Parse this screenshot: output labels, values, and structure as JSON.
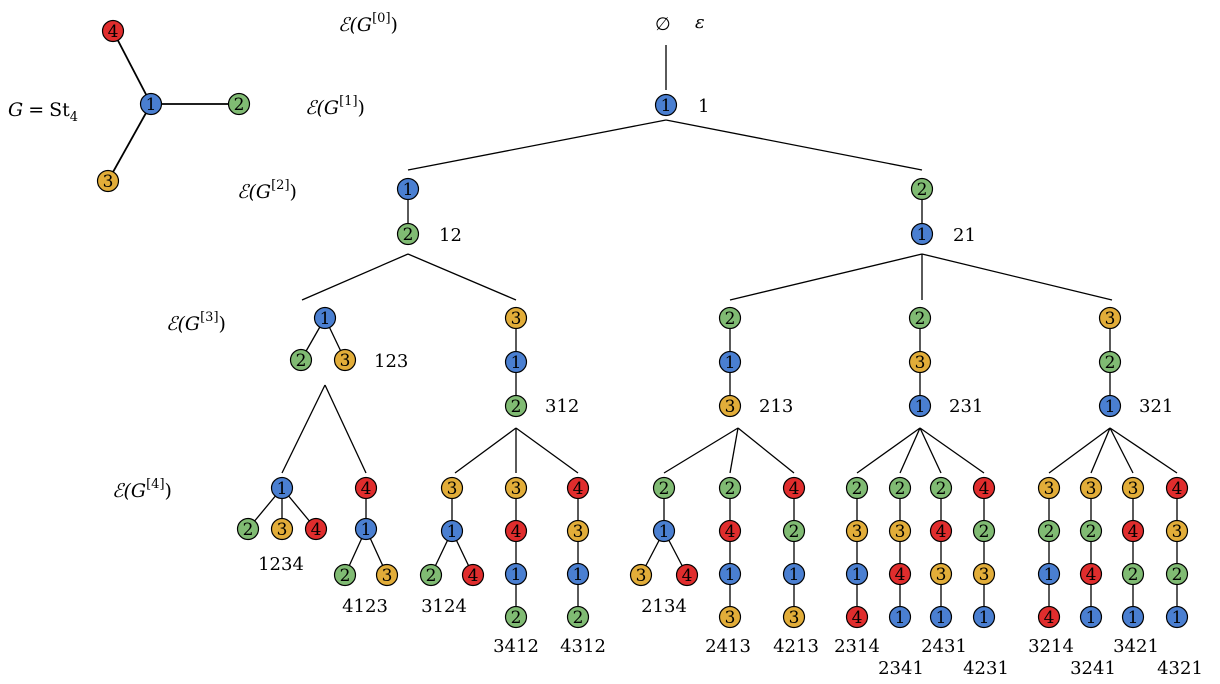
{
  "colors": {
    "1": "#4a7fd1",
    "2": "#80bb73",
    "3": "#e2ad39",
    "4": "#e02d2d",
    "edge": "#000000"
  },
  "graph": {
    "label_lhs": "G",
    "label_eq": "=",
    "label_rhs": "St",
    "label_sub": "4",
    "vertices": [
      "4",
      "1",
      "2",
      "3"
    ]
  },
  "levels": [
    {
      "prefix": "ℰ(G",
      "exp": "[0]",
      "suffix": ")"
    },
    {
      "prefix": "ℰ(G",
      "exp": "[1]",
      "suffix": ")"
    },
    {
      "prefix": "ℰ(G",
      "exp": "[2]",
      "suffix": ")"
    },
    {
      "prefix": "ℰ(G",
      "exp": "[3]",
      "suffix": ")"
    },
    {
      "prefix": "ℰ(G",
      "exp": "[4]",
      "suffix": ")"
    }
  ],
  "root": {
    "symbol": "∅",
    "word": "ε"
  },
  "trees": [
    {
      "id": "1",
      "label": "1"
    },
    {
      "id": "12",
      "label": "12"
    },
    {
      "id": "21",
      "label": "21"
    },
    {
      "id": "123",
      "label": "123"
    },
    {
      "id": "312",
      "label": "312"
    },
    {
      "id": "213",
      "label": "213"
    },
    {
      "id": "231",
      "label": "231"
    },
    {
      "id": "321",
      "label": "321"
    },
    {
      "id": "1234",
      "label": "1234"
    },
    {
      "id": "4123",
      "label": "4123"
    },
    {
      "id": "3124",
      "label": "3124"
    },
    {
      "id": "3412",
      "label": "3412"
    },
    {
      "id": "4312",
      "label": "4312"
    },
    {
      "id": "2134",
      "label": "2134"
    },
    {
      "id": "2413",
      "label": "2413"
    },
    {
      "id": "4213",
      "label": "4213"
    },
    {
      "id": "2314",
      "label": "2314"
    },
    {
      "id": "2341",
      "label": "2341"
    },
    {
      "id": "2431",
      "label": "2431"
    },
    {
      "id": "4231",
      "label": "4231"
    },
    {
      "id": "3214",
      "label": "3214"
    },
    {
      "id": "3241",
      "label": "3241"
    },
    {
      "id": "3421",
      "label": "3421"
    },
    {
      "id": "4321",
      "label": "4321"
    }
  ]
}
